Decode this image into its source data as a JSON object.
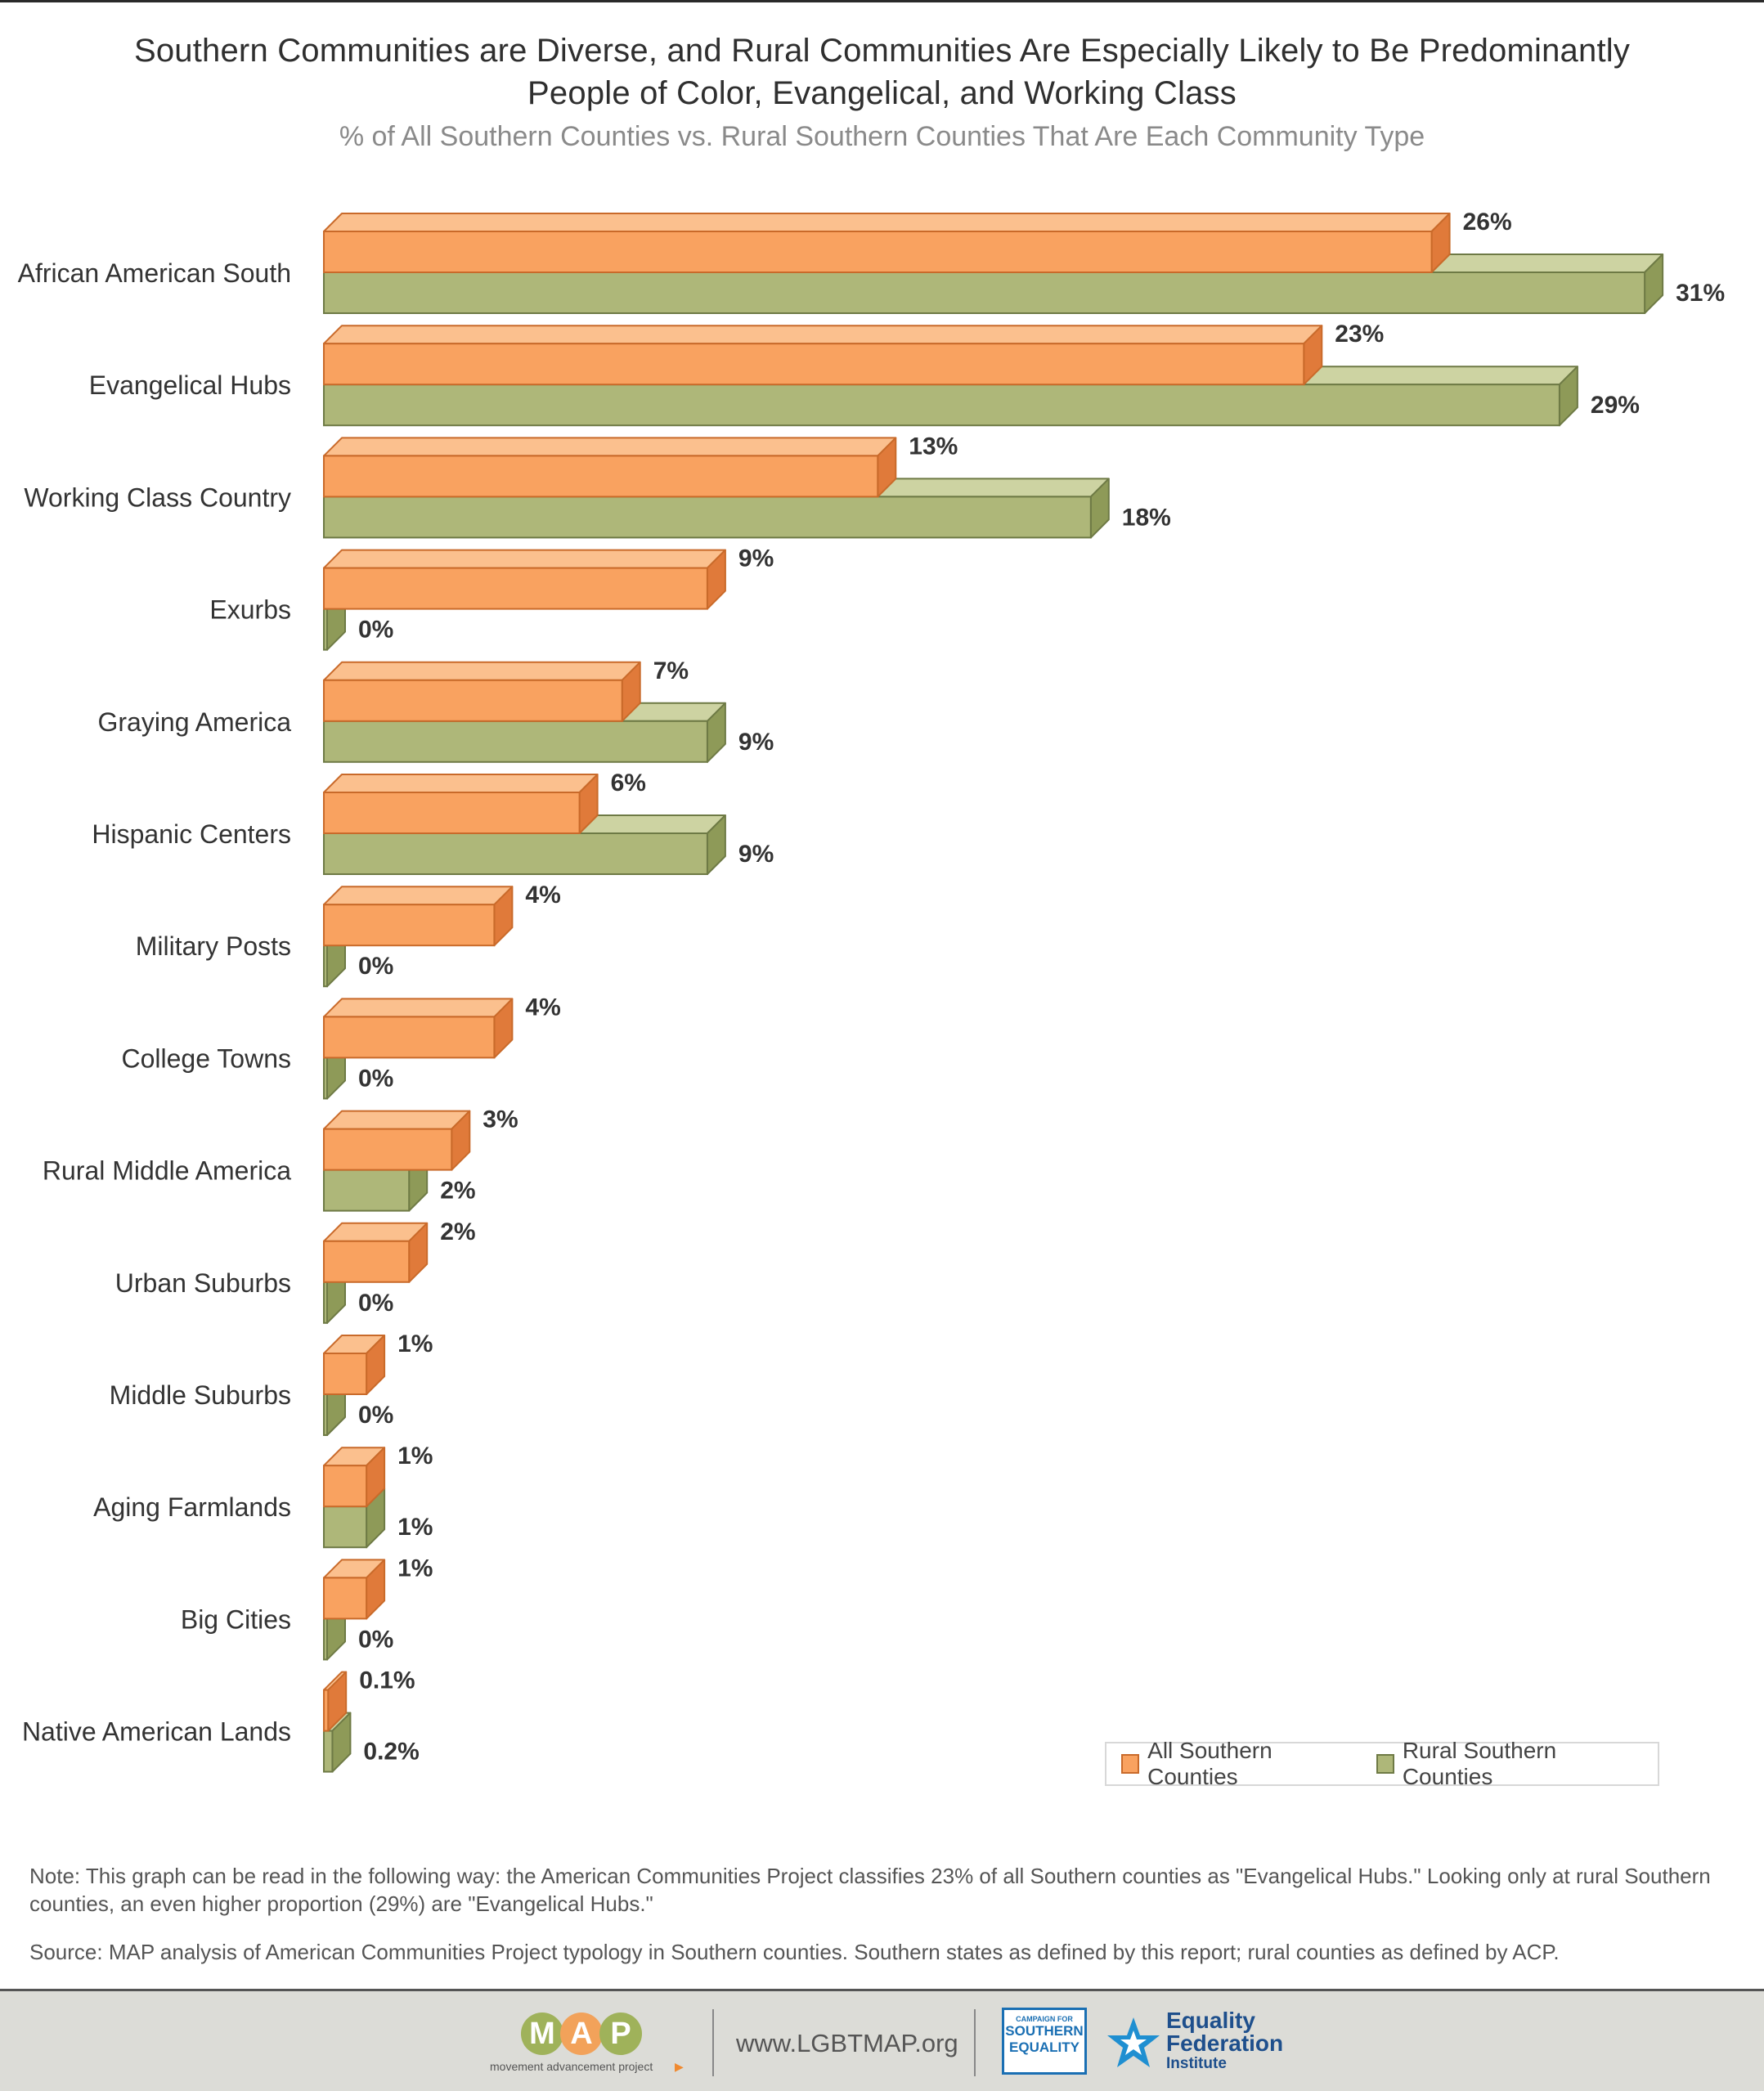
{
  "title_line1": "Southern Communities are Diverse, and Rural Communities Are Especially Likely to Be Predominantly",
  "title_line2": "People of Color, Evangelical, and Working Class",
  "subtitle": "% of All Southern Counties vs. Rural Southern Counties That Are Each Community Type",
  "colors": {
    "all_front": "#f9a260",
    "all_side": "#e07a3a",
    "all_top": "#fbc08e",
    "all_edge": "#c96a2a",
    "rural_front": "#aeb779",
    "rural_side": "#8e9a58",
    "rural_top": "#cdd3a2",
    "rural_edge": "#6e7a45"
  },
  "chart_data": {
    "type": "bar",
    "orientation": "horizontal",
    "style": "3d",
    "xlim": [
      0,
      31
    ],
    "grid": false,
    "legend_position": "bottom-right",
    "categories": [
      "African American South",
      "Evangelical Hubs",
      "Working Class Country",
      "Exurbs",
      "Graying America",
      "Hispanic Centers",
      "Military Posts",
      "College Towns",
      "Rural Middle America",
      "Urban Suburbs",
      "Middle Suburbs",
      "Aging Farmlands",
      "Big Cities",
      "Native American Lands"
    ],
    "series": [
      {
        "name": "All Southern Counties",
        "values": [
          26,
          23,
          13,
          9,
          7,
          6,
          4,
          4,
          3,
          2,
          1,
          1,
          1,
          0.1
        ],
        "labels": [
          "26%",
          "23%",
          "13%",
          "9%",
          "7%",
          "6%",
          "4%",
          "4%",
          "3%",
          "2%",
          "1%",
          "1%",
          "1%",
          "0.1%"
        ]
      },
      {
        "name": "Rural Southern Counties",
        "values": [
          31,
          29,
          18,
          0,
          9,
          9,
          0,
          0,
          2,
          0,
          0,
          1,
          0,
          0.2
        ],
        "labels": [
          "31%",
          "29%",
          "18%",
          "0%",
          "9%",
          "9%",
          "0%",
          "0%",
          "2%",
          "0%",
          "0%",
          "1%",
          "0%",
          "0.2%"
        ]
      }
    ]
  },
  "legend": {
    "all_label": "All Southern Counties",
    "rural_label": "Rural Southern Counties"
  },
  "note": "Note: This graph can be read in the following way: the American Communities Project classifies 23% of all Southern counties as \"Evangelical Hubs.\" Looking only at rural Southern counties, an even higher proportion (29%) are \"Evangelical Hubs.\"",
  "source": "Source: MAP analysis of American Communities Project typology in Southern counties. Southern states as defined by this report; rural counties as defined by ACP.",
  "footer": {
    "map_letters": [
      "M",
      "A",
      "P"
    ],
    "map_tagline": "movement advancement project",
    "url": "www.LGBTMAP.org",
    "cse_small": "CAMPAIGN FOR",
    "cse_line2": "SOUTHERN",
    "cse_line3": "EQUALITY",
    "effi_line1": "Equality",
    "effi_line2": "Federation",
    "effi_line3": "Institute"
  }
}
